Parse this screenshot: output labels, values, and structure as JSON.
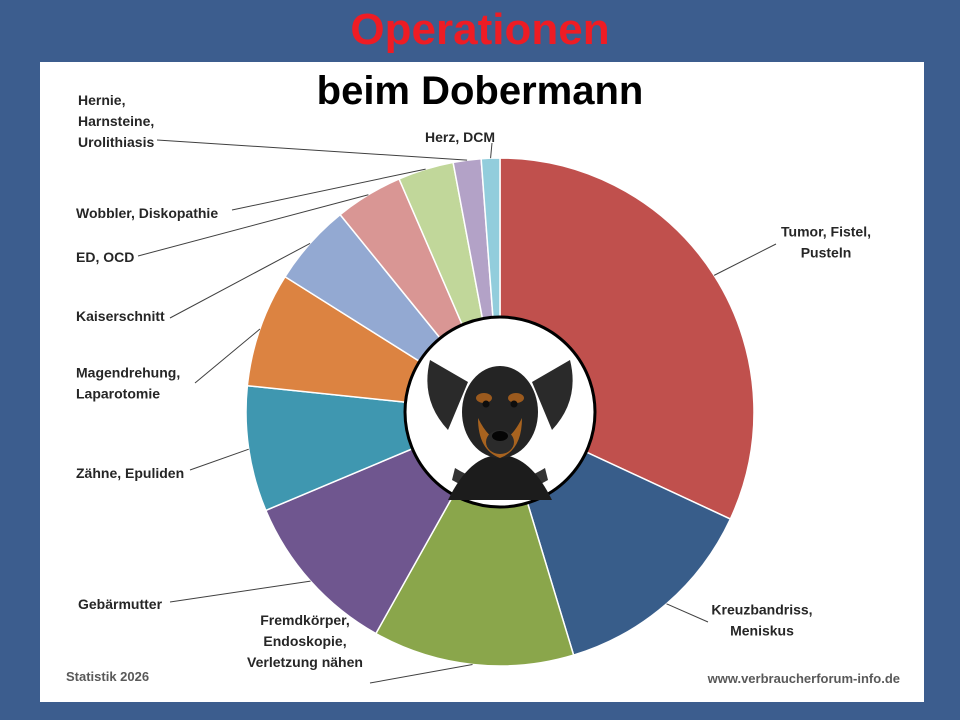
{
  "title": "Operationen",
  "subtitle": "beim Dobermann",
  "footer": {
    "left": "Statistik 2026",
    "right": "www.verbraucherforum-info.de"
  },
  "chart_data": {
    "type": "pie",
    "title": "Operationen beim Dobermann",
    "series": [
      {
        "categories": [
          "Tumor, Fistel, Pusteln",
          "Kreuzbandriss, Meniskus",
          "Fremdkörper, Endoskopie, Verletzung nähen",
          "Gebärmutter",
          "Zähne, Epuliden",
          "Magendrehung, Laparotomie",
          "Kaiserschnitt",
          "ED, OCD",
          "Wobbler, Diskopathie",
          "Hernie, Harnsteine, Urolithiasis",
          "Herz, DCM"
        ],
        "values": [
          32.4,
          13.6,
          13.0,
          10.7,
          8.1,
          7.4,
          5.3,
          4.4,
          3.6,
          1.8,
          1.2
        ],
        "colors": [
          "#c0504d",
          "#385d8a",
          "#8aa64b",
          "#6f568f",
          "#3f97b0",
          "#dc8341",
          "#93a9d2",
          "#d99694",
          "#c1d79a",
          "#b3a2c7",
          "#92cddc"
        ]
      }
    ],
    "labels": [
      [
        "Tumor, Fistel,",
        "Pusteln"
      ],
      [
        "Kreuzbandriss,",
        "Meniskus"
      ],
      [
        "Fremdkörper,",
        "Endoskopie,",
        "Verletzung nähen"
      ],
      [
        "Gebärmutter"
      ],
      [
        "Zähne, Epuliden"
      ],
      [
        "Magendrehung,",
        "Laparotomie"
      ],
      [
        "Kaiserschnitt"
      ],
      [
        "ED, OCD"
      ],
      [
        "Wobbler, Diskopathie"
      ],
      [
        "Hernie,",
        "Harnsteine,",
        "Urolithiasis"
      ],
      [
        "Herz, DCM"
      ]
    ],
    "start_angle_deg": 0,
    "direction": "clockwise",
    "center_image": "dobermann-photo",
    "legend": "none"
  }
}
